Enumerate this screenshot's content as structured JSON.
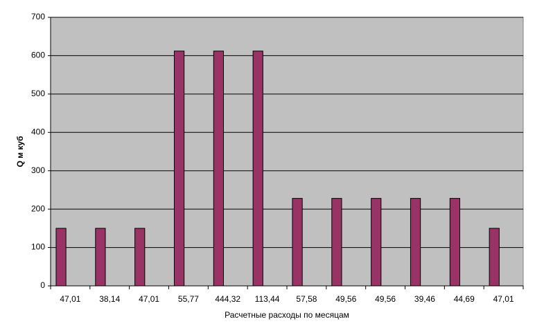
{
  "chart_data": {
    "type": "bar",
    "x_label": "Расчетные расходы по месяцам",
    "y_label": "Q м куб",
    "categories": [
      "47,01",
      "38,14",
      "47,01",
      "55,77",
      "444,32",
      "113,44",
      "57,58",
      "49,56",
      "49,56",
      "39,46",
      "44,69",
      "47,01"
    ],
    "values": [
      150,
      150,
      150,
      612,
      612,
      612,
      228,
      228,
      228,
      228,
      228,
      150
    ],
    "color": "#993366",
    "ylim": [
      0,
      700
    ],
    "yticks": [
      0,
      100,
      200,
      300,
      400,
      500,
      600,
      700
    ],
    "grid": true
  }
}
